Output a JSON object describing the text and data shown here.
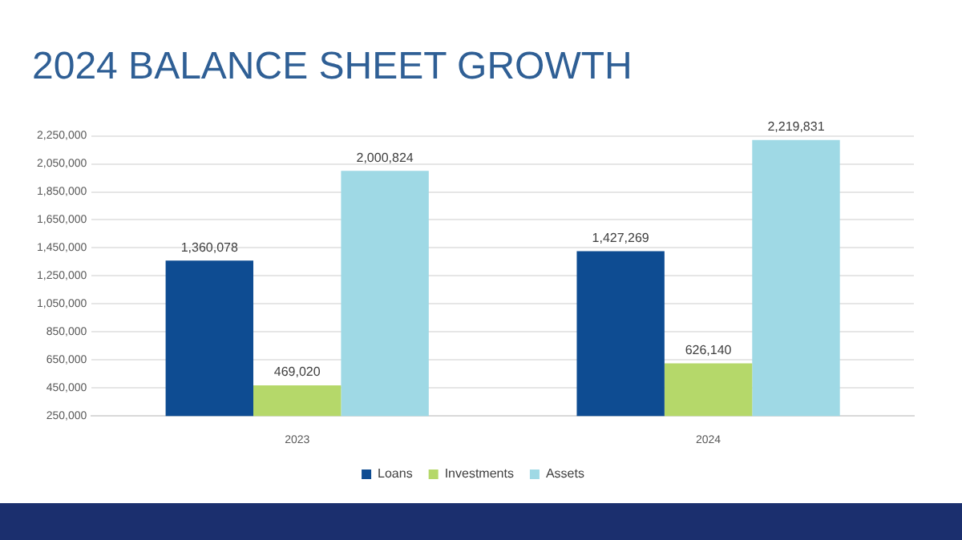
{
  "chart_data": {
    "type": "bar",
    "title": "2024 BALANCE SHEET GROWTH",
    "categories": [
      "2023",
      "2024"
    ],
    "series": [
      {
        "name": "Loans",
        "color": "#0e4c92",
        "values": [
          1360078,
          1427269
        ],
        "value_labels": [
          "1,360,078",
          "1,427,269"
        ]
      },
      {
        "name": "Investments",
        "color": "#b5d86a",
        "values": [
          469020,
          626140
        ],
        "value_labels": [
          "469,020",
          "626,140"
        ]
      },
      {
        "name": "Assets",
        "color": "#9fd9e5",
        "values": [
          2000824,
          2219831
        ],
        "value_labels": [
          "2,000,824",
          "2,219,831"
        ]
      }
    ],
    "ylim": [
      250000,
      2250000
    ],
    "yticks": [
      {
        "value": 250000,
        "label": "250,000"
      },
      {
        "value": 450000,
        "label": "450,000"
      },
      {
        "value": 650000,
        "label": "650,000"
      },
      {
        "value": 850000,
        "label": "850,000"
      },
      {
        "value": 1050000,
        "label": "1,050,000"
      },
      {
        "value": 1250000,
        "label": "1,250,000"
      },
      {
        "value": 1450000,
        "label": "1,450,000"
      },
      {
        "value": 1650000,
        "label": "1,650,000"
      },
      {
        "value": 1850000,
        "label": "1,850,000"
      },
      {
        "value": 2050000,
        "label": "2,050,000"
      },
      {
        "value": 2250000,
        "label": "2,250,000"
      }
    ],
    "grid": "y",
    "legend": "bottom"
  }
}
